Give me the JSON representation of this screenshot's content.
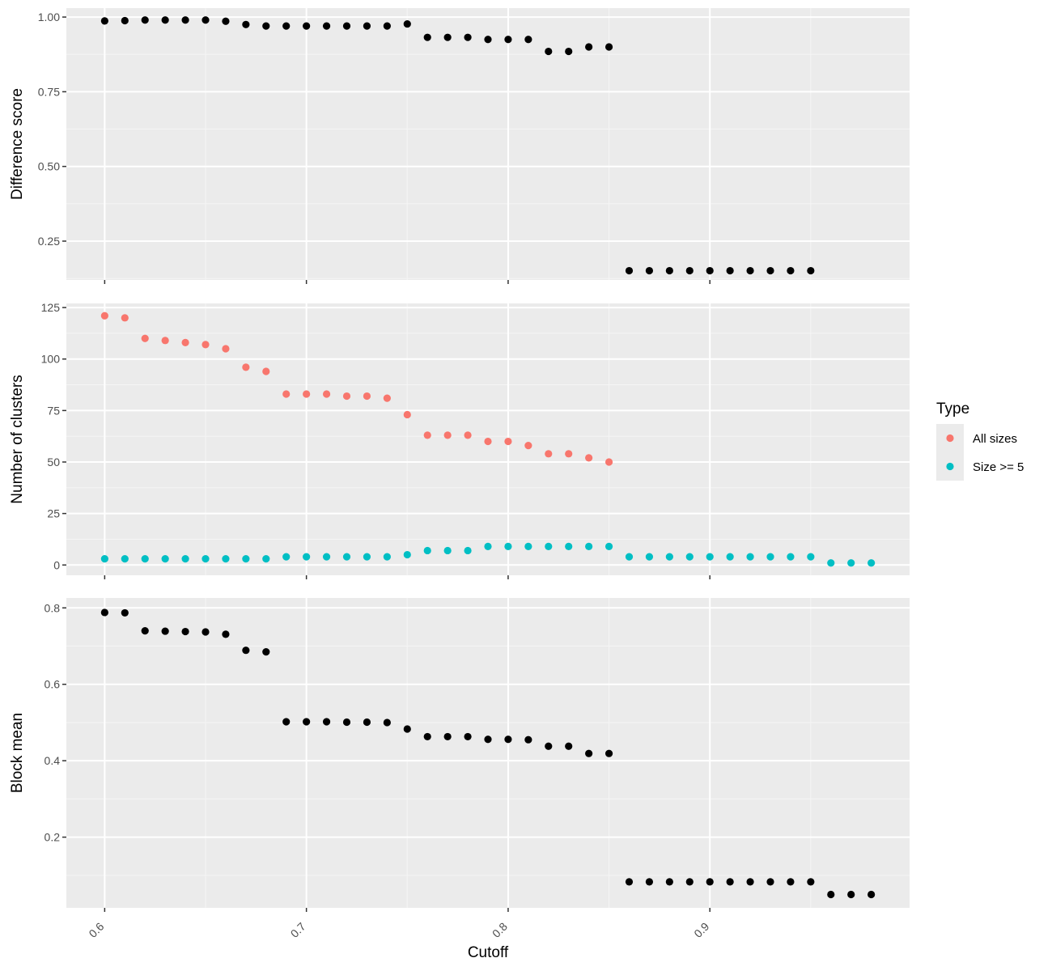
{
  "colors": {
    "panel_bg": "#ebebeb",
    "grid_major": "#ffffff",
    "grid_minor": "#f5f5f5",
    "tick_text": "#4d4d4d",
    "axis_title": "#000000",
    "black_points": "#000000",
    "all_sizes": "#f8766d",
    "size_ge5": "#00bfc4"
  },
  "chart_data": [
    {
      "type": "scatter",
      "ylabel": "Difference score",
      "xlim": [
        0.581,
        0.999
      ],
      "ylim": [
        0.12,
        1.03
      ],
      "yticks": [
        {
          "value": 0.25,
          "label": "0.25"
        },
        {
          "value": 0.5,
          "label": "0.50"
        },
        {
          "value": 0.75,
          "label": "0.75"
        },
        {
          "value": 1.0,
          "label": "1.00"
        }
      ],
      "series": [
        {
          "color_key": "black_points",
          "x": [
            0.6,
            0.61,
            0.62,
            0.63,
            0.64,
            0.65,
            0.66,
            0.67,
            0.68,
            0.69,
            0.7,
            0.71,
            0.72,
            0.73,
            0.74,
            0.75,
            0.76,
            0.77,
            0.78,
            0.79,
            0.8,
            0.81,
            0.82,
            0.83,
            0.84,
            0.85,
            0.86,
            0.87,
            0.88,
            0.89,
            0.9,
            0.91,
            0.92,
            0.93,
            0.94,
            0.95
          ],
          "y": [
            0.987,
            0.988,
            0.99,
            0.99,
            0.99,
            0.99,
            0.986,
            0.975,
            0.97,
            0.97,
            0.97,
            0.97,
            0.97,
            0.97,
            0.97,
            0.977,
            0.932,
            0.932,
            0.932,
            0.925,
            0.925,
            0.925,
            0.885,
            0.885,
            0.9,
            0.9,
            0.151,
            0.151,
            0.151,
            0.151,
            0.151,
            0.151,
            0.151,
            0.151,
            0.151,
            0.151
          ]
        }
      ]
    },
    {
      "type": "scatter",
      "ylabel": "Number of clusters",
      "xlim": [
        0.581,
        0.999
      ],
      "ylim": [
        -5,
        127
      ],
      "yticks": [
        {
          "value": 0,
          "label": "0"
        },
        {
          "value": 25,
          "label": "25"
        },
        {
          "value": 50,
          "label": "50"
        },
        {
          "value": 75,
          "label": "75"
        },
        {
          "value": 100,
          "label": "100"
        },
        {
          "value": 125,
          "label": "125"
        }
      ],
      "legend": {
        "title": "Type",
        "placement": "right",
        "entries": [
          {
            "label": "All sizes",
            "color_key": "all_sizes"
          },
          {
            "label": "Size >= 5",
            "color_key": "size_ge5"
          }
        ]
      },
      "series": [
        {
          "name": "All sizes",
          "color_key": "all_sizes",
          "x": [
            0.6,
            0.61,
            0.62,
            0.63,
            0.64,
            0.65,
            0.66,
            0.67,
            0.68,
            0.69,
            0.7,
            0.71,
            0.72,
            0.73,
            0.74,
            0.75,
            0.76,
            0.77,
            0.78,
            0.79,
            0.8,
            0.81,
            0.82,
            0.83,
            0.84,
            0.85
          ],
          "y": [
            121,
            120,
            110,
            109,
            108,
            107,
            105,
            96,
            94,
            83,
            83,
            83,
            82,
            82,
            81,
            73,
            63,
            63,
            63,
            60,
            60,
            58,
            54,
            54,
            52,
            50
          ]
        },
        {
          "name": "Size >= 5",
          "color_key": "size_ge5",
          "x": [
            0.6,
            0.61,
            0.62,
            0.63,
            0.64,
            0.65,
            0.66,
            0.67,
            0.68,
            0.69,
            0.7,
            0.71,
            0.72,
            0.73,
            0.74,
            0.75,
            0.76,
            0.77,
            0.78,
            0.79,
            0.8,
            0.81,
            0.82,
            0.83,
            0.84,
            0.85,
            0.86,
            0.87,
            0.88,
            0.89,
            0.9,
            0.91,
            0.92,
            0.93,
            0.94,
            0.95,
            0.96,
            0.97,
            0.98
          ],
          "y": [
            3,
            3,
            3,
            3,
            3,
            3,
            3,
            3,
            3,
            4,
            4,
            4,
            4,
            4,
            4,
            5,
            7,
            7,
            7,
            9,
            9,
            9,
            9,
            9,
            9,
            9,
            4,
            4,
            4,
            4,
            4,
            4,
            4,
            4,
            4,
            4,
            1,
            1,
            1
          ]
        }
      ]
    },
    {
      "type": "scatter",
      "ylabel": "Block mean",
      "xlabel": "Cutoff",
      "xlim": [
        0.581,
        0.999
      ],
      "ylim": [
        0.015,
        0.826
      ],
      "yticks": [
        {
          "value": 0.2,
          "label": "0.2"
        },
        {
          "value": 0.4,
          "label": "0.4"
        },
        {
          "value": 0.6,
          "label": "0.6"
        },
        {
          "value": 0.8,
          "label": "0.8"
        }
      ],
      "xticks": [
        {
          "value": 0.6,
          "label": "0.6"
        },
        {
          "value": 0.7,
          "label": "0.7"
        },
        {
          "value": 0.8,
          "label": "0.8"
        },
        {
          "value": 0.9,
          "label": "0.9"
        }
      ],
      "series": [
        {
          "color_key": "black_points",
          "x": [
            0.6,
            0.61,
            0.62,
            0.63,
            0.64,
            0.65,
            0.66,
            0.67,
            0.68,
            0.69,
            0.7,
            0.71,
            0.72,
            0.73,
            0.74,
            0.75,
            0.76,
            0.77,
            0.78,
            0.79,
            0.8,
            0.81,
            0.82,
            0.83,
            0.84,
            0.85,
            0.86,
            0.87,
            0.88,
            0.89,
            0.9,
            0.91,
            0.92,
            0.93,
            0.94,
            0.95,
            0.96,
            0.97,
            0.98
          ],
          "y": [
            0.788,
            0.787,
            0.74,
            0.739,
            0.738,
            0.737,
            0.731,
            0.689,
            0.685,
            0.502,
            0.502,
            0.502,
            0.501,
            0.501,
            0.5,
            0.483,
            0.463,
            0.463,
            0.463,
            0.456,
            0.456,
            0.455,
            0.438,
            0.438,
            0.419,
            0.419,
            0.083,
            0.083,
            0.083,
            0.083,
            0.083,
            0.083,
            0.083,
            0.083,
            0.083,
            0.083,
            0.05,
            0.05,
            0.05
          ]
        }
      ]
    }
  ]
}
